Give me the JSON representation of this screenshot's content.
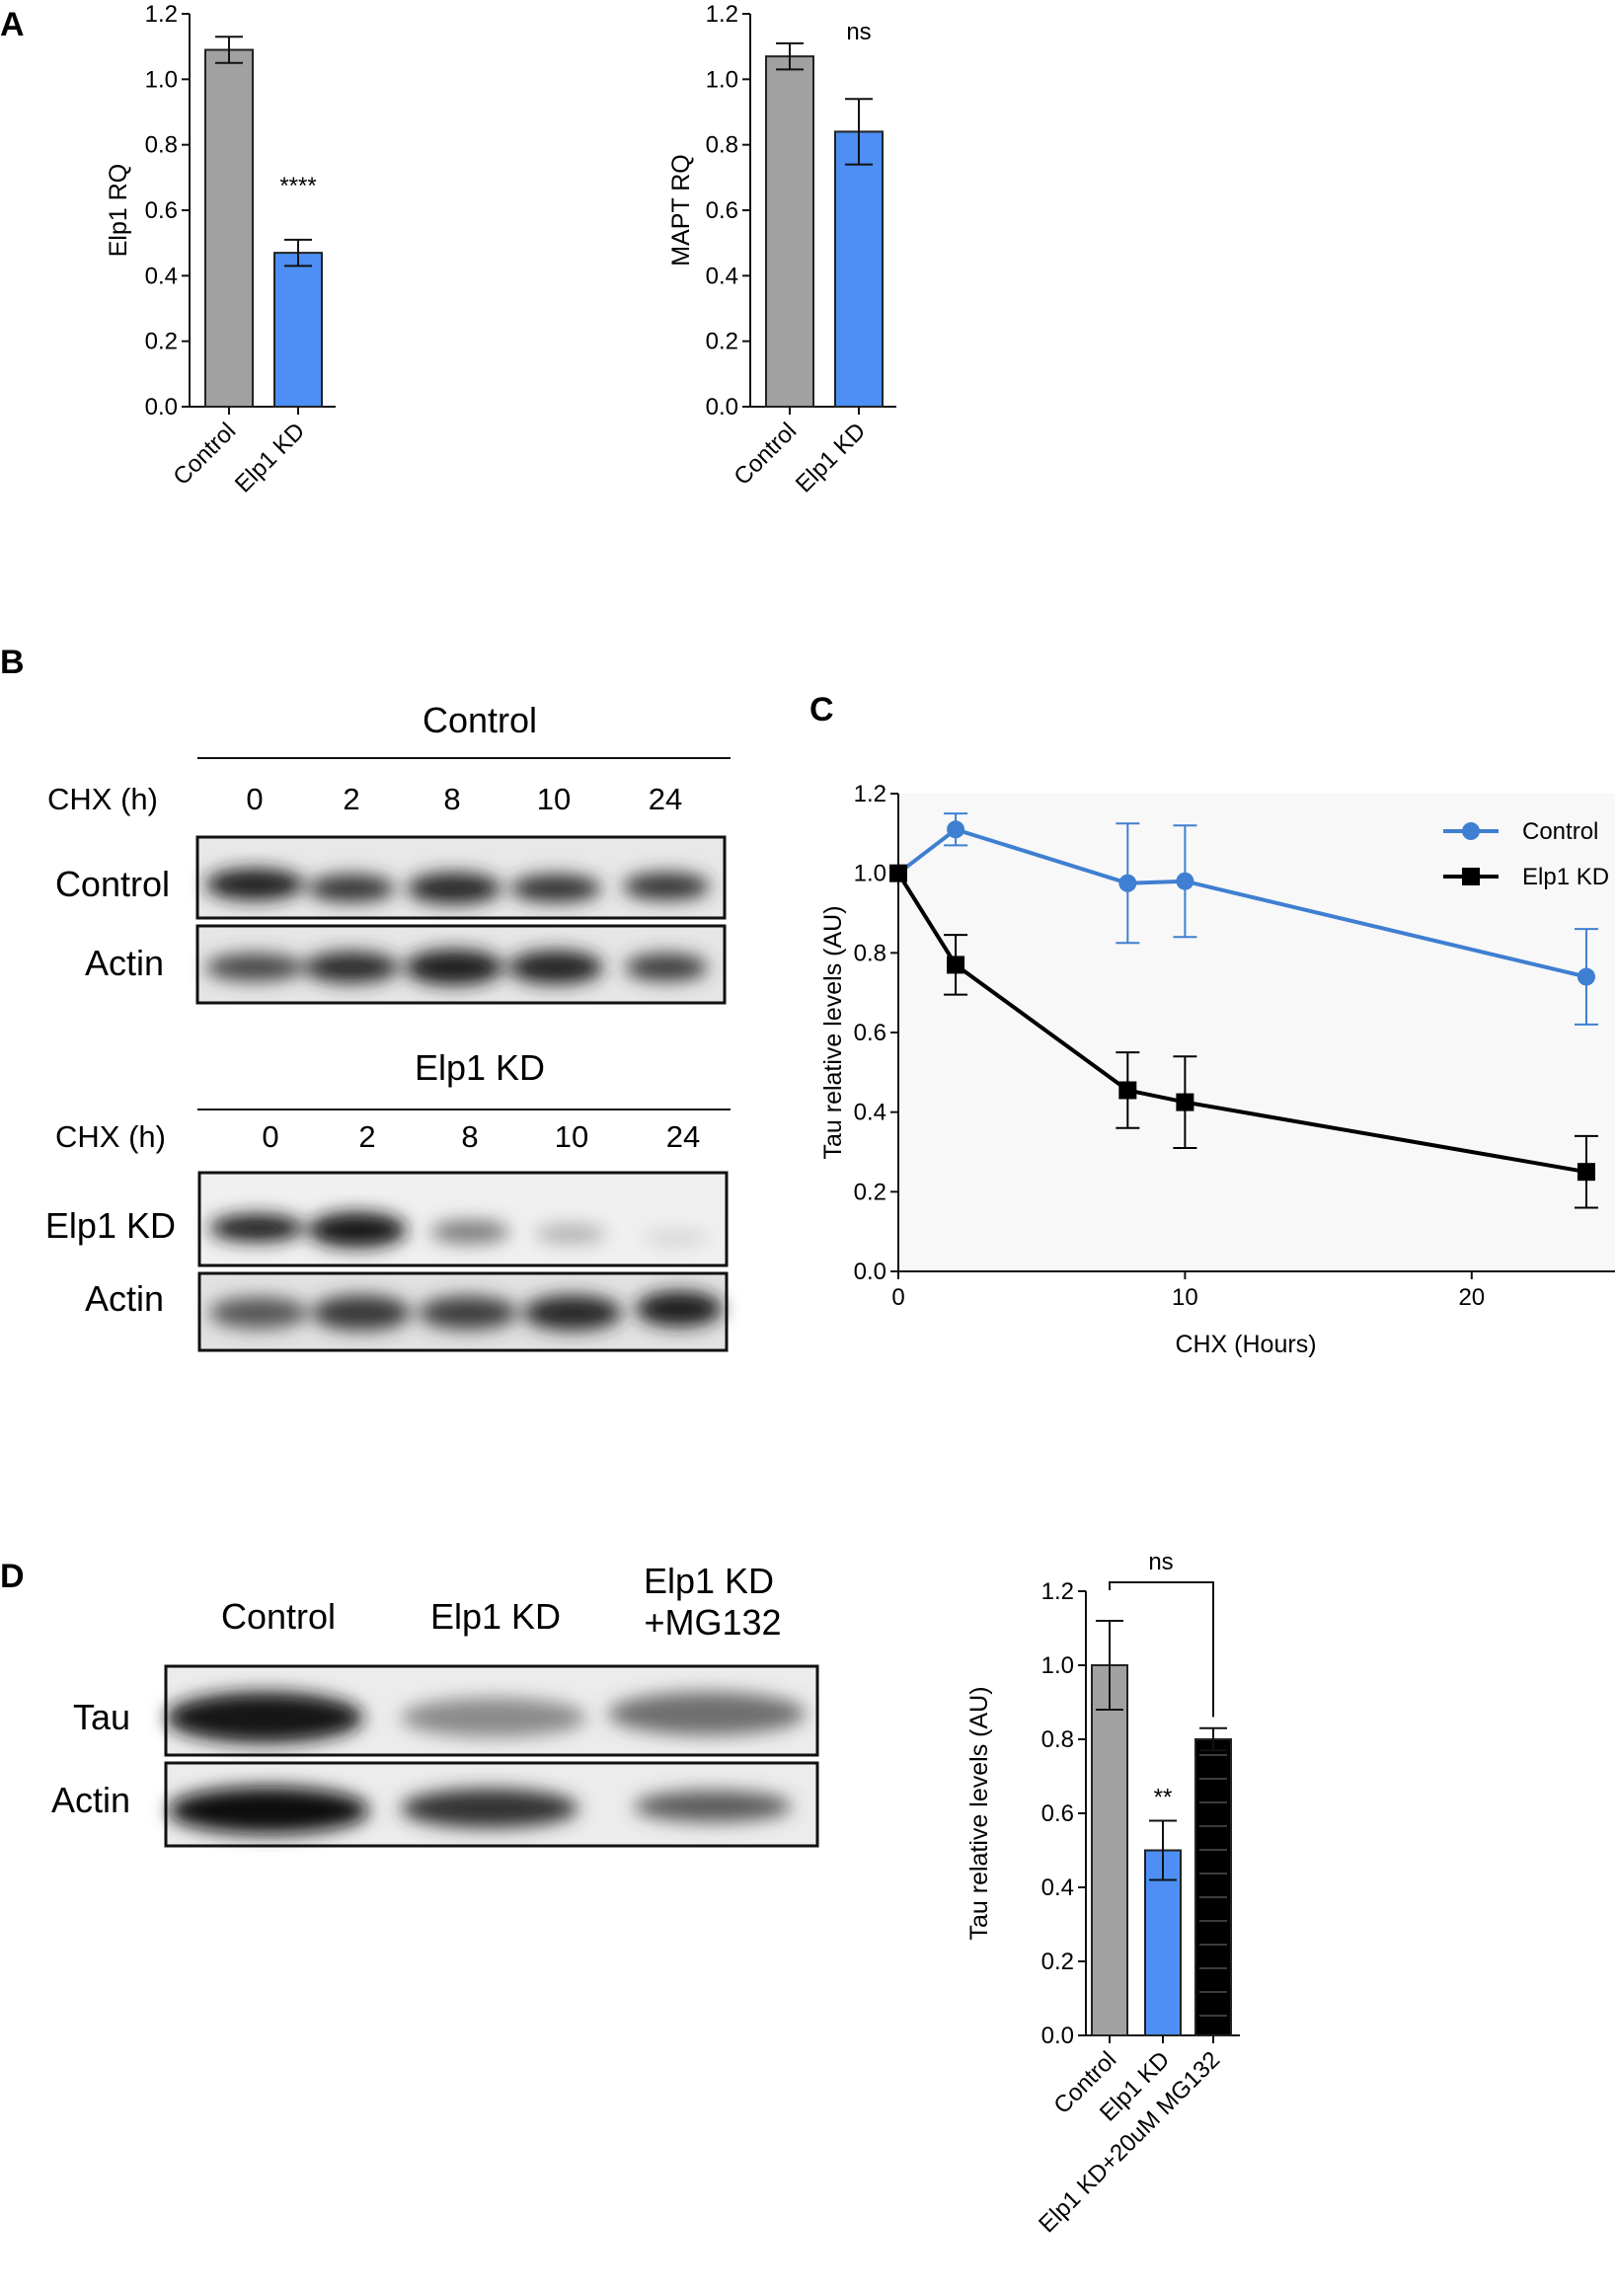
{
  "panels": {
    "a": "A",
    "b": "B",
    "c": "C",
    "d": "D"
  },
  "colors": {
    "control": "#a1a1a1",
    "knockdown": "#4d8ff5",
    "mg132": "#000000",
    "line_control": "#3f7fd1",
    "line_kd": "#000000"
  },
  "blot_b": {
    "control": {
      "header": "Control",
      "chx_label": "CHX (h)",
      "timepoints": [
        "0",
        "2",
        "8",
        "10",
        "24"
      ],
      "row1": "Control",
      "row2": "Actin"
    },
    "kd": {
      "header": "Elp1 KD",
      "chx_label": "CHX (h)",
      "timepoints": [
        "0",
        "2",
        "8",
        "10",
        "24"
      ],
      "row1": "Elp1 KD",
      "row2": "Actin"
    }
  },
  "blot_d": {
    "lanes": [
      "Control",
      "Elp1 KD",
      "Elp1 KD",
      "+MG132"
    ],
    "rows": [
      "Tau",
      "Actin"
    ]
  },
  "chart_data": [
    {
      "type": "bar",
      "panel": "A",
      "categories": [
        "Control",
        "Elp1 KD"
      ],
      "values": [
        1.09,
        0.47
      ],
      "errors": [
        0.04,
        0.04
      ],
      "ylabel": "Elp1 RQ",
      "ylim": [
        0,
        1.2
      ],
      "yticks": [
        "0.0",
        "0.2",
        "0.4",
        "0.6",
        "0.8",
        "1.0",
        "1.2"
      ],
      "annotation": "****"
    },
    {
      "type": "bar",
      "panel": "A",
      "categories": [
        "Control",
        "Elp1 KD"
      ],
      "values": [
        1.07,
        0.84
      ],
      "errors": [
        0.04,
        0.1
      ],
      "ylabel": "MAPT RQ",
      "ylim": [
        0,
        1.2
      ],
      "yticks": [
        "0.0",
        "0.2",
        "0.4",
        "0.6",
        "0.8",
        "1.0",
        "1.2"
      ],
      "annotation": "ns"
    },
    {
      "type": "line",
      "panel": "C",
      "xlabel": "CHX (Hours)",
      "ylabel": "Tau relative levels (AU)",
      "xlim": [
        0,
        25
      ],
      "ylim": [
        0,
        1.2
      ],
      "xticks": [
        "0",
        "10",
        "20"
      ],
      "yticks": [
        "0.0",
        "0.2",
        "0.4",
        "0.6",
        "0.8",
        "1.0",
        "1.2"
      ],
      "legend_position": "top-right",
      "series": [
        {
          "name": "Control",
          "x": [
            0,
            2,
            8,
            10,
            24
          ],
          "y": [
            1.0,
            1.11,
            0.975,
            0.98,
            0.74
          ],
          "err": [
            0.0,
            0.04,
            0.15,
            0.14,
            0.12
          ]
        },
        {
          "name": "Elp1 KD",
          "x": [
            0,
            2,
            8,
            10,
            24
          ],
          "y": [
            1.0,
            0.77,
            0.455,
            0.425,
            0.25
          ],
          "err": [
            0.0,
            0.075,
            0.095,
            0.115,
            0.09
          ]
        }
      ]
    },
    {
      "type": "bar",
      "panel": "D",
      "categories": [
        "Control",
        "Elp1 KD",
        "Elp1 KD+20uM MG132"
      ],
      "values": [
        1.0,
        0.5,
        0.8
      ],
      "errors": [
        0.12,
        0.08,
        0.03
      ],
      "ylabel": "Tau relative levels (AU)",
      "ylim": [
        0,
        1.2
      ],
      "yticks": [
        "0.0",
        "0.2",
        "0.4",
        "0.6",
        "0.8",
        "1.0",
        "1.2"
      ],
      "annotations": [
        "**",
        "ns"
      ]
    }
  ]
}
